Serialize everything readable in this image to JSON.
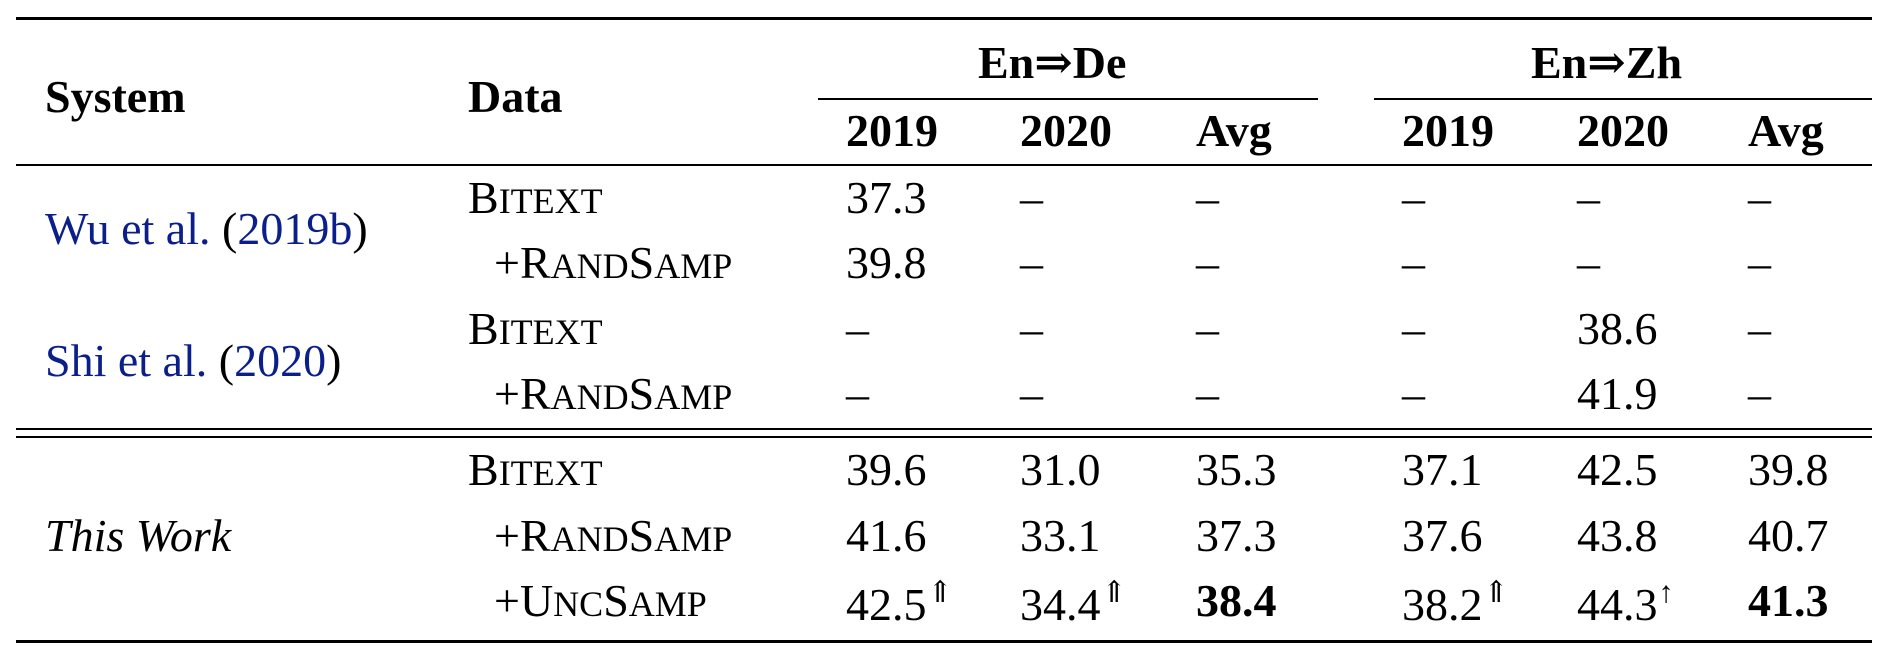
{
  "headers": {
    "system": "System",
    "data": "Data",
    "group_de": "En⇒De",
    "group_zh": "En⇒Zh",
    "year_2019": "2019",
    "year_2020": "2020",
    "avg": "Avg"
  },
  "systems": {
    "wu": {
      "name": "Wu et al.",
      "open": "(",
      "year": "2019b",
      "close": ")"
    },
    "shi": {
      "name": "Shi et al.",
      "open": "(",
      "year": "2020",
      "close": ")"
    },
    "this_work": "This Work"
  },
  "data_labels": {
    "bitext_first": "B",
    "bitext_rest": "ITEXT",
    "rand_prefix": "+R",
    "rand_mid": "AND",
    "rand_s": "S",
    "rand_end": "AMP",
    "unc_prefix": "+U",
    "unc_mid": "NC",
    "unc_s": "S",
    "unc_end": "AMP"
  },
  "rows": {
    "wu_bitext": [
      "37.3",
      "–",
      "–",
      "–",
      "–",
      "–"
    ],
    "wu_rand": [
      "39.8",
      "–",
      "–",
      "–",
      "–",
      "–"
    ],
    "shi_bitext": [
      "–",
      "–",
      "–",
      "–",
      "38.6",
      "–"
    ],
    "shi_rand": [
      "–",
      "–",
      "–",
      "–",
      "41.9",
      "–"
    ],
    "tw_bitext": [
      "39.6",
      "31.0",
      "35.3",
      "37.1",
      "42.5",
      "39.8"
    ],
    "tw_rand": [
      "41.6",
      "33.1",
      "37.3",
      "37.6",
      "43.8",
      "40.7"
    ],
    "tw_unc": [
      "42.5",
      "34.4",
      "38.4",
      "38.2",
      "44.3",
      "41.3"
    ]
  },
  "markers": {
    "double_up": "⇑",
    "single_up": "↑"
  }
}
